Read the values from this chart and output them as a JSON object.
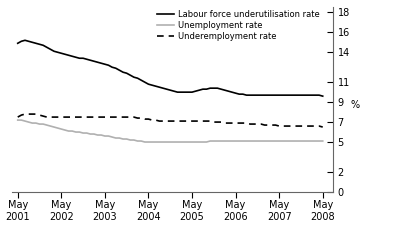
{
  "ylabel": "%",
  "yticks": [
    0,
    2,
    5,
    7,
    9,
    11,
    14,
    16,
    18
  ],
  "ylim": [
    0,
    18.5
  ],
  "xtick_years": [
    2001,
    2002,
    2003,
    2004,
    2005,
    2006,
    2007,
    2008
  ],
  "legend_labels": [
    "Labour force underutilisation rate",
    "Unemployment rate",
    "Underemployment rate"
  ],
  "line1_color": "#000000",
  "line2_color": "#b0b0b0",
  "line3_color": "#000000",
  "line_width": 1.2,
  "background_color": "#ffffff",
  "lfu_data": [
    14.9,
    15.1,
    15.2,
    15.1,
    15.0,
    14.9,
    14.8,
    14.7,
    14.5,
    14.3,
    14.1,
    14.0,
    13.9,
    13.8,
    13.7,
    13.6,
    13.5,
    13.4,
    13.4,
    13.3,
    13.2,
    13.1,
    13.0,
    12.9,
    12.8,
    12.7,
    12.5,
    12.4,
    12.2,
    12.0,
    11.9,
    11.7,
    11.5,
    11.4,
    11.2,
    11.0,
    10.8,
    10.7,
    10.6,
    10.5,
    10.4,
    10.3,
    10.2,
    10.1,
    10.0,
    10.0,
    10.0,
    10.0,
    10.0,
    10.1,
    10.2,
    10.3,
    10.3,
    10.4,
    10.4,
    10.4,
    10.3,
    10.2,
    10.1,
    10.0,
    9.9,
    9.8,
    9.8,
    9.7,
    9.7,
    9.7,
    9.7,
    9.7,
    9.7,
    9.7,
    9.7,
    9.7,
    9.7,
    9.7,
    9.7,
    9.7,
    9.7,
    9.7,
    9.7,
    9.7,
    9.7,
    9.7,
    9.7,
    9.7,
    9.6
  ],
  "unemp_data": [
    7.2,
    7.2,
    7.1,
    7.0,
    6.9,
    6.9,
    6.8,
    6.8,
    6.7,
    6.6,
    6.5,
    6.4,
    6.3,
    6.2,
    6.1,
    6.1,
    6.0,
    6.0,
    5.9,
    5.9,
    5.8,
    5.8,
    5.7,
    5.7,
    5.6,
    5.6,
    5.5,
    5.4,
    5.4,
    5.3,
    5.3,
    5.2,
    5.2,
    5.1,
    5.1,
    5.0,
    5.0,
    5.0,
    5.0,
    5.0,
    5.0,
    5.0,
    5.0,
    5.0,
    5.0,
    5.0,
    5.0,
    5.0,
    5.0,
    5.0,
    5.0,
    5.0,
    5.0,
    5.1,
    5.1,
    5.1,
    5.1,
    5.1,
    5.1,
    5.1,
    5.1,
    5.1,
    5.1,
    5.1,
    5.1,
    5.1,
    5.1,
    5.1,
    5.1,
    5.1,
    5.1,
    5.1,
    5.1,
    5.1,
    5.1,
    5.1,
    5.1,
    5.1,
    5.1,
    5.1,
    5.1,
    5.1,
    5.1,
    5.1,
    5.1
  ],
  "underemp_data": [
    7.5,
    7.7,
    7.8,
    7.8,
    7.8,
    7.8,
    7.7,
    7.6,
    7.5,
    7.5,
    7.5,
    7.5,
    7.5,
    7.5,
    7.5,
    7.5,
    7.5,
    7.5,
    7.5,
    7.5,
    7.5,
    7.5,
    7.5,
    7.5,
    7.5,
    7.5,
    7.5,
    7.5,
    7.5,
    7.5,
    7.5,
    7.5,
    7.5,
    7.4,
    7.4,
    7.3,
    7.3,
    7.2,
    7.2,
    7.1,
    7.1,
    7.1,
    7.1,
    7.1,
    7.1,
    7.1,
    7.1,
    7.1,
    7.1,
    7.1,
    7.1,
    7.1,
    7.1,
    7.1,
    7.0,
    7.0,
    7.0,
    6.9,
    6.9,
    6.9,
    6.9,
    6.9,
    6.9,
    6.9,
    6.8,
    6.8,
    6.8,
    6.8,
    6.7,
    6.7,
    6.7,
    6.7,
    6.6,
    6.6,
    6.6,
    6.6,
    6.6,
    6.6,
    6.6,
    6.6,
    6.6,
    6.6,
    6.6,
    6.6,
    6.5
  ]
}
